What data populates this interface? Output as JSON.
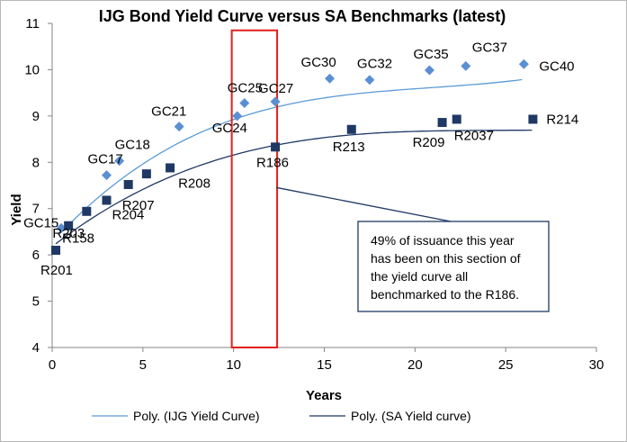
{
  "chart_data": {
    "type": "scatter",
    "title": "IJG Bond Yield Curve versus SA Benchmarks (latest)",
    "xlabel": "Years",
    "ylabel": "Yield",
    "xlim": [
      0,
      30
    ],
    "ylim": [
      4,
      11
    ],
    "xticks": [
      0,
      5,
      10,
      15,
      20,
      25,
      30
    ],
    "yticks": [
      4,
      5,
      6,
      7,
      8,
      9,
      10,
      11
    ],
    "grid": false,
    "legend_position": "bottom",
    "series": [
      {
        "name": "IJG Yield Curve",
        "marker": "diamond",
        "color": "#5b8fd4",
        "points": [
          {
            "label": "GC15",
            "x": 0.5,
            "y": 6.58
          },
          {
            "label": "GC17",
            "x": 3.0,
            "y": 7.72
          },
          {
            "label": "GC18",
            "x": 3.7,
            "y": 8.03
          },
          {
            "label": "GC21",
            "x": 7.0,
            "y": 8.77
          },
          {
            "label": "GC24",
            "x": 10.2,
            "y": 9.0
          },
          {
            "label": "GC25",
            "x": 10.6,
            "y": 9.28
          },
          {
            "label": "GC27",
            "x": 12.3,
            "y": 9.31
          },
          {
            "label": "GC30",
            "x": 15.3,
            "y": 9.81
          },
          {
            "label": "GC32",
            "x": 17.5,
            "y": 9.78
          },
          {
            "label": "GC35",
            "x": 20.8,
            "y": 9.99
          },
          {
            "label": "GC37",
            "x": 22.8,
            "y": 10.08
          },
          {
            "label": "GC40",
            "x": 26.0,
            "y": 10.12
          }
        ]
      },
      {
        "name": "SA Yield curve",
        "marker": "square",
        "color": "#1f3864",
        "points": [
          {
            "label": "R201",
            "x": 0.2,
            "y": 6.1
          },
          {
            "label": "R158",
            "x": 0.9,
            "y": 6.63
          },
          {
            "label": "R203",
            "x": 1.9,
            "y": 6.94
          },
          {
            "label": "R204",
            "x": 3.0,
            "y": 7.18
          },
          {
            "label": "R207",
            "x": 4.2,
            "y": 7.52
          },
          {
            "label": "R208",
            "x": 5.2,
            "y": 7.75
          },
          {
            "label": "R208b",
            "x": 6.5,
            "y": 7.88
          },
          {
            "label": "R186",
            "x": 12.3,
            "y": 8.33
          },
          {
            "label": "R213",
            "x": 16.5,
            "y": 8.71
          },
          {
            "label": "R209",
            "x": 21.5,
            "y": 8.86
          },
          {
            "label": "R2037",
            "x": 22.3,
            "y": 8.93
          },
          {
            "label": "R214",
            "x": 26.5,
            "y": 8.93
          }
        ]
      }
    ],
    "trendlines": [
      {
        "name": "Poly. (IJG Yield Curve)",
        "color": "#5b9bd5",
        "coeffs": [
          6.28,
          0.4242,
          -0.019,
          0.000303
        ]
      },
      {
        "name": "Poly. (SA Yield curve)",
        "color": "#1f3864",
        "coeffs": [
          6.18,
          0.3048,
          -0.0124,
          0.000169
        ]
      }
    ],
    "visible_labels": {
      "IJG": [
        "GC15",
        "GC17",
        "GC18",
        "GC21",
        "GC24",
        "GC25",
        "GC27",
        "GC30",
        "GC32",
        "GC35",
        "GC37",
        "GC40"
      ],
      "SA": [
        "R201",
        "R158",
        "R203",
        "R204",
        "R207",
        "R208",
        "R186",
        "R213",
        "R209",
        "R2037",
        "R214"
      ]
    },
    "highlight_range_x": [
      9.9,
      12.4
    ],
    "highlight_range_y": [
      4,
      10.85
    ],
    "annotation": {
      "lines": [
        "49% of issuance this year",
        "has been on this section of",
        "the    yield    curve    all",
        "benchmarked to the R186."
      ]
    },
    "legend": [
      "Poly. (IJG Yield Curve)",
      "Poly. (SA Yield curve)"
    ]
  }
}
